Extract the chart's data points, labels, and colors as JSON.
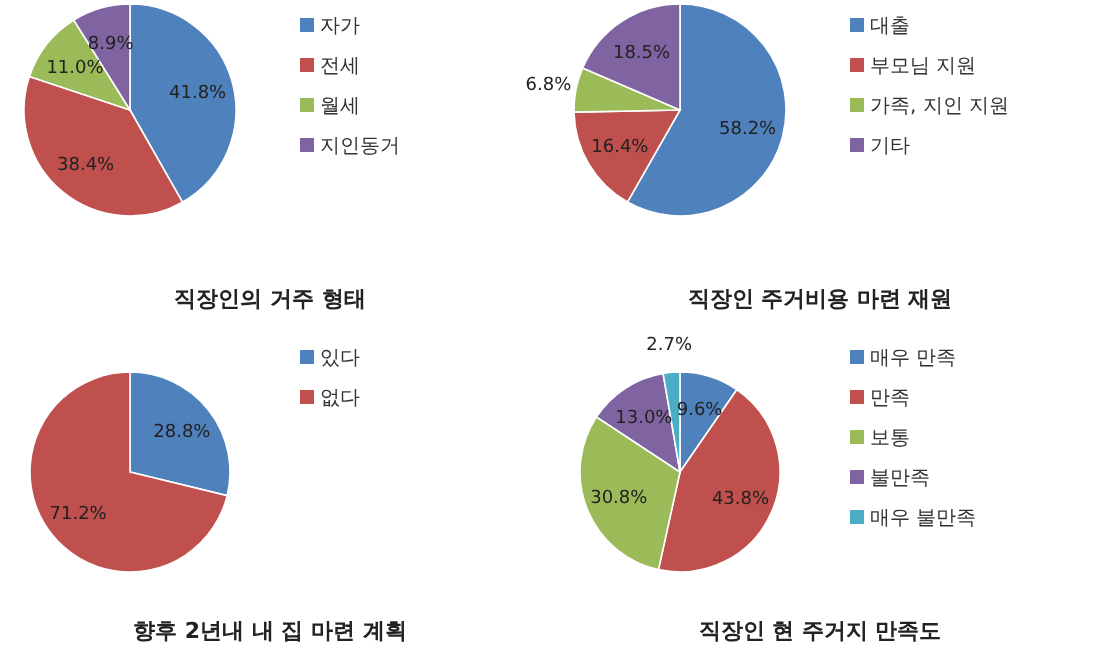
{
  "chart_data": [
    {
      "type": "pie",
      "title": "직장인의 거주 형태",
      "categories": [
        "자가",
        "전세",
        "월세",
        "지인동거"
      ],
      "values": [
        41.8,
        38.4,
        11.0,
        8.9
      ],
      "value_labels": [
        "41.8%",
        "38.4%",
        "11.0%",
        "8.9%"
      ],
      "colors": [
        "#4f81bd",
        "#c0504d",
        "#9bbb59",
        "#8064a2"
      ],
      "legend": "right"
    },
    {
      "type": "pie",
      "title": "직장인 주거비용 마련 재원",
      "categories": [
        "대출",
        "부모님 지원",
        "가족, 지인 지원",
        "기타"
      ],
      "values": [
        58.2,
        16.4,
        6.8,
        18.5
      ],
      "value_labels": [
        "58.2%",
        "16.4%",
        "6.8%",
        "18.5%"
      ],
      "colors": [
        "#4f81bd",
        "#c0504d",
        "#9bbb59",
        "#8064a2"
      ],
      "legend": "right"
    },
    {
      "type": "pie",
      "title": "향후 2년내 내 집 마련 계획",
      "categories": [
        "있다",
        "없다"
      ],
      "values": [
        28.8,
        71.2
      ],
      "value_labels": [
        "28.8%",
        "71.2%"
      ],
      "colors": [
        "#4f81bd",
        "#c0504d"
      ],
      "legend": "right"
    },
    {
      "type": "pie",
      "title": "직장인 현 주거지 만족도",
      "categories": [
        "매우 만족",
        "만족",
        "보통",
        "불만족",
        "매우 불만족"
      ],
      "values": [
        9.6,
        43.8,
        30.8,
        13.0,
        2.7
      ],
      "value_labels": [
        "9.6%",
        "43.8%",
        "30.8%",
        "13.0%",
        "2.7%"
      ],
      "colors": [
        "#4f81bd",
        "#c0504d",
        "#9bbb59",
        "#8064a2",
        "#4bacc6"
      ],
      "legend": "right"
    }
  ]
}
